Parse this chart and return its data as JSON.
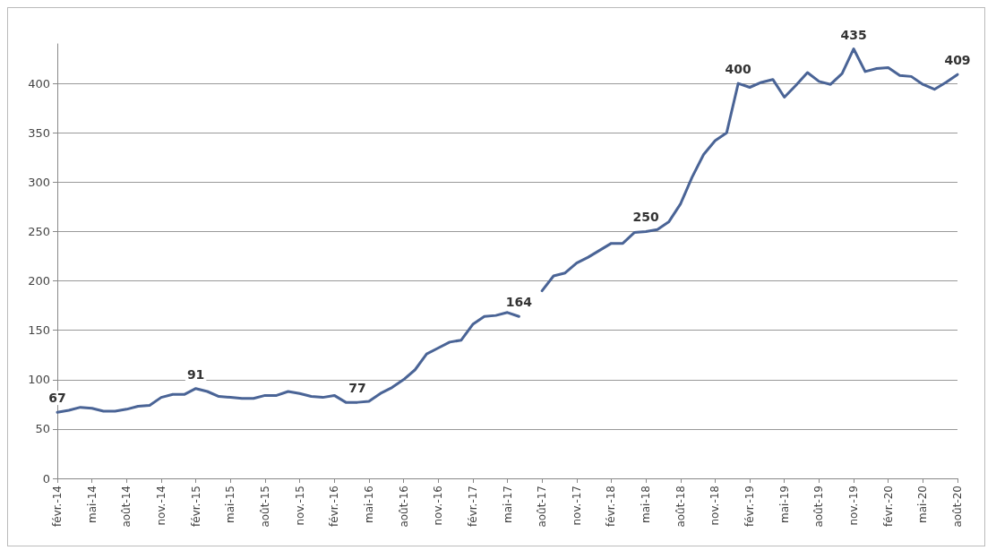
{
  "chart_data": {
    "type": "line",
    "categories": [
      "févr.-14",
      null,
      null,
      "mai-14",
      null,
      null,
      "août-14",
      null,
      null,
      "nov.-14",
      null,
      null,
      "févr.-15",
      null,
      null,
      "mai-15",
      null,
      null,
      "août-15",
      null,
      null,
      "nov.-15",
      null,
      null,
      "févr.-16",
      null,
      null,
      "mai-16",
      null,
      null,
      "août-16",
      null,
      null,
      "nov.-16",
      null,
      null,
      "févr.-17",
      null,
      null,
      "mai-17",
      null,
      null,
      "août-17",
      null,
      null,
      "nov.-17",
      null,
      null,
      "févr.-18",
      null,
      null,
      "mai-18",
      null,
      null,
      "août-18",
      null,
      null,
      "nov.-18",
      null,
      null,
      "févr.-19",
      null,
      null,
      "mai-19",
      null,
      null,
      "août-19",
      null,
      null,
      "nov.-19",
      null,
      null,
      "févr.-20",
      null,
      null,
      "mai-20",
      null,
      null,
      "août-20"
    ],
    "series": [
      {
        "color": "#4a6496",
        "values": [
          67,
          69,
          72,
          71,
          68,
          68,
          70,
          73,
          74,
          82,
          85,
          85,
          91,
          88,
          83,
          82,
          81,
          81,
          84,
          84,
          88,
          86,
          83,
          82,
          84,
          77,
          77,
          78,
          86,
          92,
          100,
          110,
          126,
          132,
          138,
          140,
          156,
          164,
          165,
          168,
          164,
          null,
          190,
          205,
          208,
          218,
          224,
          231,
          238,
          238,
          249,
          250,
          252,
          260,
          278,
          305,
          328,
          342,
          350,
          400,
          396,
          401,
          404,
          386,
          398,
          411,
          402,
          399,
          410,
          435,
          412,
          415,
          416,
          408,
          407,
          399,
          394,
          401,
          409
        ],
        "value_labels": [
          "67",
          null,
          null,
          null,
          null,
          null,
          null,
          null,
          null,
          null,
          null,
          null,
          "91",
          null,
          null,
          null,
          null,
          null,
          null,
          null,
          null,
          null,
          null,
          null,
          null,
          null,
          "77",
          null,
          null,
          null,
          null,
          null,
          null,
          null,
          null,
          null,
          null,
          null,
          null,
          null,
          "164",
          null,
          null,
          null,
          null,
          null,
          null,
          null,
          null,
          null,
          null,
          "250",
          null,
          null,
          null,
          null,
          null,
          null,
          null,
          "400",
          null,
          null,
          null,
          null,
          null,
          null,
          null,
          null,
          null,
          "435",
          null,
          null,
          null,
          null,
          null,
          null,
          null,
          null,
          "409"
        ]
      }
    ],
    "ylim": [
      0,
      440
    ],
    "yticks": [
      0,
      50,
      100,
      150,
      200,
      250,
      300,
      350,
      400
    ],
    "grid": "y",
    "marker": "none",
    "line_style": "solid"
  }
}
